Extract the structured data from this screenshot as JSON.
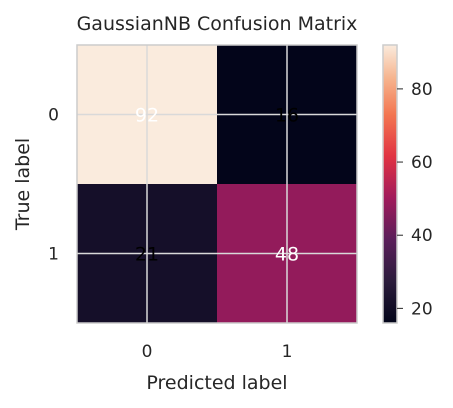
{
  "chart_data": {
    "type": "heatmap",
    "title": "GaussianNB Confusion Matrix",
    "xlabel": "Predicted label",
    "ylabel": "True label",
    "x_ticks": [
      "0",
      "1"
    ],
    "y_ticks": [
      "0",
      "1"
    ],
    "cells": [
      {
        "row": 0,
        "col": 0,
        "value": 92,
        "label": "92"
      },
      {
        "row": 0,
        "col": 1,
        "value": 16,
        "label": "16"
      },
      {
        "row": 1,
        "col": 0,
        "value": 21,
        "label": "21"
      },
      {
        "row": 1,
        "col": 1,
        "value": 48,
        "label": "48"
      }
    ],
    "colorbar": {
      "min": 16,
      "max": 92,
      "ticks": [
        20,
        40,
        60,
        80
      ],
      "colormap": "rocket"
    },
    "grid": true
  }
}
